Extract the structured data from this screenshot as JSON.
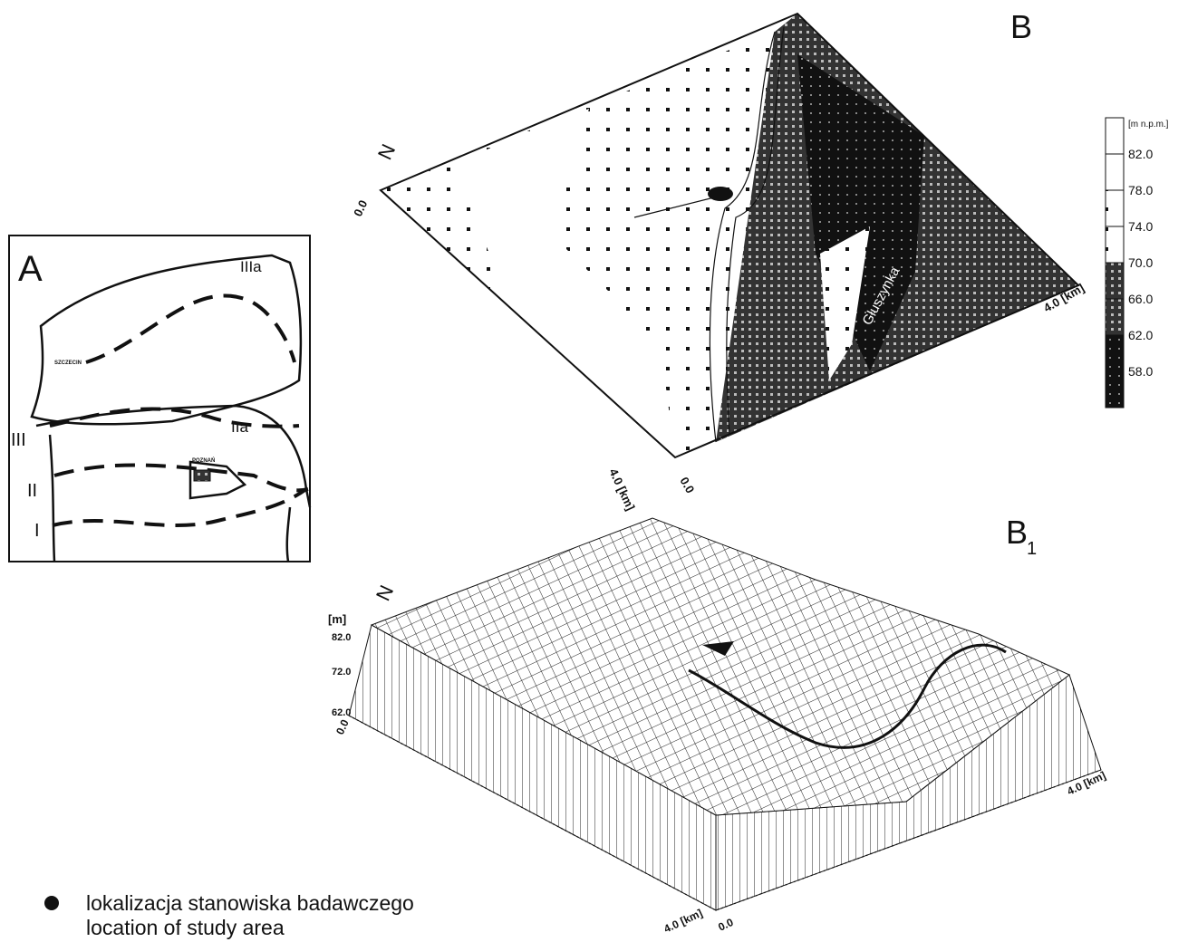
{
  "panel_a": {
    "label": "A",
    "regions": [
      "IIIa",
      "IIa",
      "III",
      "II",
      "I"
    ],
    "cities": [
      "SZCZECIN",
      "POZNAŃ"
    ]
  },
  "panel_b": {
    "label": "B",
    "north": "N",
    "river": "Głuszynka",
    "axis": {
      "x_start": "0.0",
      "x_end": "4.0 [km]",
      "y_start": "0.0",
      "y_end": "4.0 [km]"
    },
    "legend": {
      "unit": "[m n.p.m.]",
      "levels": [
        "82.0",
        "78.0",
        "74.0",
        "70.0",
        "66.0",
        "62.0",
        "58.0"
      ]
    }
  },
  "panel_b1": {
    "label": "B",
    "subscript": "1",
    "north": "N",
    "z_unit": "[m]",
    "z_levels": [
      "82.0",
      "72.0",
      "62.0"
    ],
    "axis": {
      "x_start": "0.0",
      "x_end": "4.0 [km]",
      "y_start": "0.0",
      "y_end": "4.0 [km]"
    }
  },
  "legend": {
    "marker_text": [
      "lokalizacja stanowiska badawczego",
      "location of study area"
    ]
  }
}
